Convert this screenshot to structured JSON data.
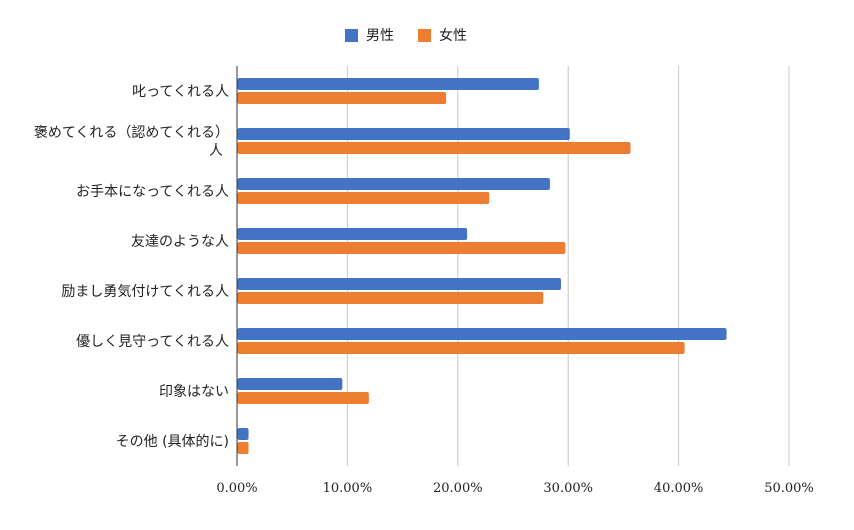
{
  "chart_data": {
    "type": "bar",
    "orientation": "horizontal",
    "categories": [
      "叱ってくれる人",
      "褒めてくれる（認めてくれる）人",
      "お手本になってくれる人",
      "友達のような人",
      "励まし勇気付けてくれる人",
      "優しく見守ってくれる人",
      "印象はない",
      "その他 (具体的に)"
    ],
    "series": [
      {
        "name": "男性",
        "color": "#4472c4",
        "values": [
          27.3,
          30.1,
          28.3,
          20.8,
          29.3,
          44.3,
          9.5,
          1.0
        ]
      },
      {
        "name": "女性",
        "color": "#ed7d31",
        "values": [
          18.9,
          35.6,
          22.8,
          29.7,
          27.7,
          40.5,
          11.9,
          1.0
        ]
      }
    ],
    "xlim": [
      0,
      50
    ],
    "x_ticks": [
      "0.00%",
      "10.00%",
      "20.00%",
      "30.00%",
      "40.00%",
      "50.00%"
    ],
    "grid": true,
    "legend_position": "top-center",
    "title": "",
    "xlabel": "",
    "ylabel": ""
  }
}
